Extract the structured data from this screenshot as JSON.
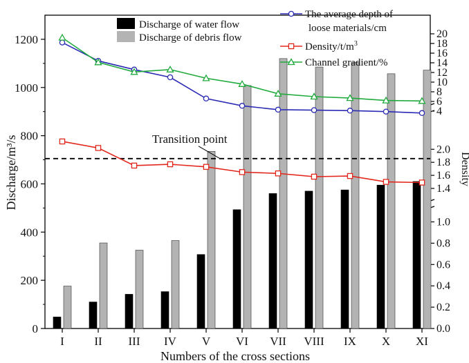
{
  "chart_data": {
    "type": "bar",
    "xlabel": "Numbers of the cross sections",
    "ylabel": "Discharge/m³/s",
    "right_label": "Density",
    "categories": [
      "I",
      "II",
      "III",
      "IV",
      "V",
      "VI",
      "VII",
      "VIII",
      "IX",
      "X",
      "XI"
    ],
    "ylim": [
      0,
      1300
    ],
    "y_ticks": [
      "0",
      "200",
      "400",
      "600",
      "800",
      "1000",
      "1200"
    ],
    "series": [
      {
        "name": "Discharge of water flow",
        "kind": "bar",
        "color": "#000000",
        "values": [
          48,
          110,
          142,
          153,
          307,
          493,
          560,
          570,
          575,
          595,
          610
        ]
      },
      {
        "name": "Discharge of debris flow",
        "kind": "bar",
        "color": "#b3b3b3",
        "values": [
          176,
          355,
          325,
          365,
          735,
          1008,
          1120,
          1085,
          1105,
          1057,
          1072
        ]
      },
      {
        "name": "The average depth of loose materials/cm",
        "kind": "line",
        "color": "#2a2ab5",
        "marker": "circle",
        "values": [
          18.2,
          14.4,
          12.6,
          11.0,
          6.6,
          5.1,
          4.3,
          4.2,
          4.1,
          3.9,
          3.6
        ]
      },
      {
        "name": "Density/t/m³",
        "kind": "line",
        "color": "#e3261c",
        "marker": "square",
        "values": [
          2.12,
          2.02,
          1.75,
          1.77,
          1.73,
          1.65,
          1.63,
          1.58,
          1.59,
          1.5,
          1.49
        ]
      },
      {
        "name": "Channel gradient/%",
        "kind": "line",
        "color": "#1fab3c",
        "marker": "triangle",
        "values": [
          19.2,
          14.1,
          12.1,
          12.6,
          10.8,
          9.6,
          7.6,
          7.0,
          6.7,
          6.2,
          6.1
        ]
      }
    ],
    "right_axis_top": {
      "range": [
        0,
        20
      ],
      "ticks": [
        "4",
        "6",
        "8",
        "10",
        "12",
        "14",
        "16",
        "18",
        "20"
      ]
    },
    "right_axis_density": {
      "upper_range": [
        1.3,
        2.2
      ],
      "upper_ticks": [
        "1.4",
        "1.6",
        "1.8",
        "2.0"
      ],
      "lower_range": [
        0,
        1.16
      ],
      "lower_ticks": [
        "0.0",
        "0.2",
        "0.4",
        "0.6",
        "0.8",
        "1.0"
      ]
    },
    "transition": {
      "label": "Transition point",
      "value": 705
    },
    "legend_placement": "top"
  }
}
